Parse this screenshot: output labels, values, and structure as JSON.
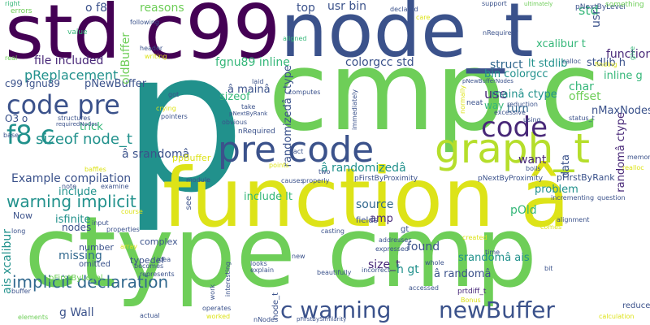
{
  "words": {
    "p": "p",
    "cmp_c": "cmp c",
    "std_c99": "std c99",
    "node_t": "node_t",
    "function_a": "function â",
    "ctype_cmp": "ctype cmp",
    "graph_t": "graph_t",
    "pre_code": "pre code",
    "code_pre": "code pre",
    "code": "code",
    "f8_c": "f8 c",
    "newBuffer": "newBuffer",
    "c_warning": "c warning",
    "warning_implicit": "warning implicit",
    "implicit_declaration": "implicit declaration",
    "sizeof_node_t": "sizeof node_t",
    "pReplacement": "pReplacement",
    "file_included": "file included",
    "example_compilation": "Example compilation",
    "a_srandoma": "â srandomâ",
    "a_randomizeda": "â randomizedâ",
    "randomizeda_ctype": "randomizedâ ctype",
    "colorgcc_std": "colorgcc std",
    "fgnu89_inline": "fgnu89 inline",
    "a_maina": "â mainâ",
    "reasons": "reasons",
    "top": "top",
    "usr_bin": "usr bin",
    "o_f8": "o f8",
    "std": "std",
    "use": "use",
    "way": "way",
    "function": "function",
    "xcalibur_t": "xcalibur t",
    "stdlib_h": "stdlib h",
    "struct": "struct",
    "lt_stdlib": "lt stdlib",
    "bin_colorgcc": "bin colorgcc",
    "char": "char",
    "offset": "offset",
    "maina_ctype": "mainâ ctype",
    "inline_g": "inline g",
    "randoma_ctype": "randomâ ctype",
    "nMaxNodes": "nMaxNodes",
    "turn": "turn",
    "data": "data",
    "want": "want",
    "source": "source",
    "amp": "amp",
    "pOld": "pOld",
    "srandoma_ais": "srandomâ ais",
    "a_randoma": "â randomâ",
    "size_t": "size_t",
    "h_gt": "h gt",
    "found": "found",
    "problem": "problem",
    "pFirstByRank": "pFirstByRank",
    "ais_xcalibur": "ais xcalibur",
    "g_wall": "g Wall",
    "missing": "missing",
    "include": "include",
    "include_lt": "include lt",
    "isfinite": "isfinite",
    "nodes": "nodes",
    "now": "Now",
    "c99_fgnu89": "c99 fgnu89",
    "pNewBuffer": "pNewBuffer",
    "o3_o": "O3 o",
    "trick": "trick",
    "sizeof": "sizeof",
    "oldBuffer": "oldBuffer",
    "ppBuffer": "ppBuffer",
    "nRequired": "nRequired",
    "typedef": "typedef",
    "complex": "complex",
    "number": "number",
    "omitted": "omitted",
    "pFirstByLevel": "pFirstByLevel",
    "pFirstByProximity": "pFirstByProximity",
    "pNextByProximity": "pNextByProximity",
    "pNextByLevel": "pNextByLevel",
    "prtdiff_t": "prtdiff_t",
    "fields": "fields",
    "gt": "gt",
    "reduce": "reduce",
    "something": "something",
    "errors": "errors",
    "right": "right",
    "value": "value",
    "real": "real",
    "header": "header",
    "writing": "writing",
    "following": "following",
    "declared": "declared",
    "care": "care",
    "aligned": "aligned",
    "nRequired_q": "nRequired\"",
    "support": "support",
    "ultimately": "ultimately",
    "calloc": "calloc",
    "finding": "finding",
    "give": "give",
    "laid": "laid",
    "computes": "computes",
    "pNewBufferNodes": "pNewBufferNodes",
    "reduction": "reduction",
    "excessive": "excessive",
    "using": "using",
    "status_t": "status_t",
    "neat": "neat",
    "crying": "crying",
    "got": "got",
    "take": "take",
    "pNextByRank": "pNextByRank",
    "obvious": "obvious",
    "pointers": "pointers",
    "structures": "structures",
    "requiredNodes": "requiredNodes",
    "base": "base",
    "baffles": "baffles",
    "note": "note",
    "examine": "examine",
    "points": "points",
    "fact": "fact",
    "two": "two",
    "causes": "causes",
    "properly": "properly",
    "module": "module",
    "see": "see",
    "incrementing": "incrementing",
    "question": "question",
    "alignment": "alignment",
    "addresses": "addresses",
    "casting": "casting",
    "expressed": "expressed",
    "created": "created",
    "long": "long",
    "input": "input",
    "properties": "properties",
    "array": "array",
    "idea": "idea",
    "looks": "looks",
    "explain": "explain",
    "new": "new",
    "incorrect": "incorrect",
    "whole": "whole",
    "beautifully": "beautifully",
    "bonus": "Bonus",
    "time": "time",
    "bit": "bit",
    "becomes": "becomes",
    "represents": "represents",
    "interesting": "interesting",
    "buffer": "buffer",
    "elements": "elements",
    "actual": "actual",
    "operates": "operates",
    "worked": "worked",
    "nNodes": "nNodes",
    "pFirstBySimilarity": "pFirstBySimilarity",
    "accessed": "accessed",
    "calculation": "calculation",
    "memory": "memory",
    "realloc": "realloc",
    "boils": "boils",
    "comes": "comes",
    "normally": "normally",
    "work": "work",
    "course": "course",
    "immediately": "immediately",
    "node_t_small": "node_t",
    "usr": "usr"
  }
}
